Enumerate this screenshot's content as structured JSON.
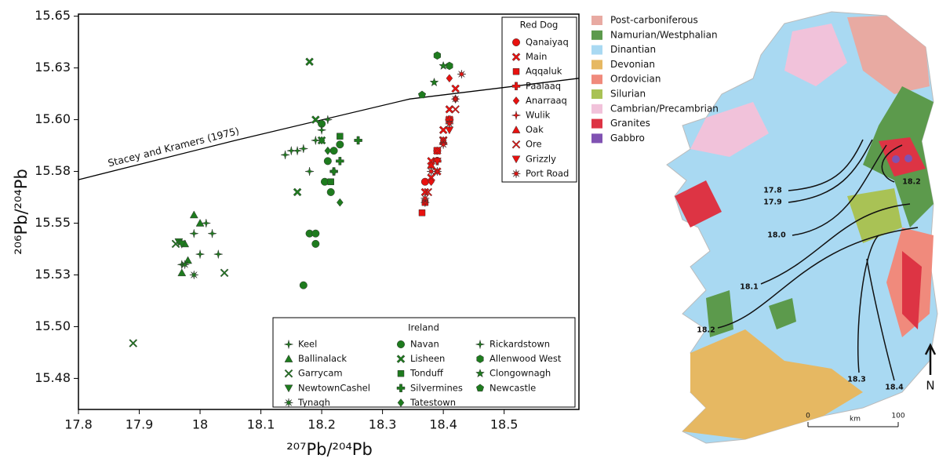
{
  "chart_data": {
    "type": "scatter",
    "x_label": "²⁰⁷Pb/²⁰⁴Pb",
    "y_label": "²⁰⁶Pb/²⁰⁴Pb",
    "xlim": [
      17.8,
      18.623
    ],
    "ylim": [
      15.46,
      15.651
    ],
    "xticks": [
      17.8,
      17.9,
      18.0,
      18.1,
      18.2,
      18.3,
      18.4,
      18.5
    ],
    "yticks": [
      {
        "value": 15.65,
        "label": "15.65"
      },
      {
        "value": 15.625,
        "label": "15.63"
      },
      {
        "value": 15.6,
        "label": "15.60"
      },
      {
        "value": 15.575,
        "label": "15.58"
      },
      {
        "value": 15.55,
        "label": "15.55"
      },
      {
        "value": 15.525,
        "label": "15.53"
      },
      {
        "value": 15.5,
        "label": "15.50"
      },
      {
        "value": 15.475,
        "label": "15.48"
      }
    ],
    "reference_line": {
      "name": "Stacey and Kramers (1975)",
      "x": [
        17.8,
        18.058,
        18.345,
        18.623
      ],
      "y": [
        15.571,
        15.59,
        15.61,
        15.62
      ]
    },
    "legends": [
      {
        "title": "Red Dog",
        "position": "upper right"
      },
      {
        "title": "Ireland",
        "position": "lower right"
      }
    ],
    "series": [
      {
        "name": "Qanaiyaq",
        "group": "Red Dog",
        "marker": "circle",
        "color": "#e8110f",
        "x": [
          18.37,
          18.39
        ],
        "y": [
          15.57,
          15.585
        ]
      },
      {
        "name": "Main",
        "group": "Red Dog",
        "marker": "x",
        "color": "#e8110f",
        "x": [
          18.37,
          18.38,
          18.39,
          18.4,
          18.41,
          18.38,
          18.4,
          18.42,
          18.39,
          18.41
        ],
        "y": [
          15.565,
          15.572,
          15.585,
          15.595,
          15.605,
          15.58,
          15.59,
          15.615,
          15.575,
          15.6
        ]
      },
      {
        "name": "Aqqaluk",
        "group": "Red Dog",
        "marker": "square",
        "color": "#e8110f",
        "x": [
          18.365,
          18.37
        ],
        "y": [
          15.555,
          15.56
        ]
      },
      {
        "name": "Paalaaq",
        "group": "Red Dog",
        "marker": "plus",
        "color": "#e8110f",
        "x": [
          18.39,
          18.41
        ],
        "y": [
          15.58,
          15.6
        ]
      },
      {
        "name": "Anarraaq",
        "group": "Red Dog",
        "marker": "diamond",
        "color": "#e8110f",
        "x": [
          18.38,
          18.4,
          18.42,
          18.41
        ],
        "y": [
          15.57,
          15.59,
          15.61,
          15.62
        ]
      },
      {
        "name": "Wulik",
        "group": "Red Dog",
        "marker": "star4",
        "color": "#e8110f",
        "x": [
          18.37,
          18.39
        ],
        "y": [
          15.56,
          15.575
        ]
      },
      {
        "name": "Oak",
        "group": "Red Dog",
        "marker": "triangle",
        "color": "#e8110f",
        "x": [
          18.38
        ],
        "y": [
          15.578
        ]
      },
      {
        "name": "Ore",
        "group": "Red Dog",
        "marker": "x-thin",
        "color": "#e8110f",
        "x": [
          18.375,
          18.4,
          18.42
        ],
        "y": [
          15.565,
          15.59,
          15.605
        ]
      },
      {
        "name": "Grizzly",
        "group": "Red Dog",
        "marker": "triangle-down",
        "color": "#e8110f",
        "x": [
          18.39,
          18.41
        ],
        "y": [
          15.58,
          15.595
        ]
      },
      {
        "name": "Port Road",
        "group": "Red Dog",
        "marker": "asterisk",
        "color": "#e8110f",
        "x": [
          18.37,
          18.38,
          18.4,
          18.42,
          18.43,
          18.41
        ],
        "y": [
          15.562,
          15.575,
          15.588,
          15.61,
          15.622,
          15.598
        ]
      },
      {
        "name": "Keel",
        "group": "Ireland",
        "marker": "star4",
        "color": "#1e7b1e",
        "x": [
          17.97,
          17.99,
          18.0,
          18.01,
          18.02,
          17.97,
          18.03
        ],
        "y": [
          15.54,
          15.545,
          15.535,
          15.55,
          15.545,
          15.53,
          15.535
        ]
      },
      {
        "name": "Ballinalack",
        "group": "Ireland",
        "marker": "triangle",
        "color": "#1e7b1e",
        "x": [
          17.97,
          17.98,
          17.99,
          18.0,
          17.975
        ],
        "y": [
          15.526,
          15.532,
          15.554,
          15.55,
          15.54
        ]
      },
      {
        "name": "Garrycam",
        "group": "Ireland",
        "marker": "x-thin",
        "color": "#1e7b1e",
        "x": [
          17.89,
          18.04,
          17.96
        ],
        "y": [
          15.492,
          15.526,
          15.54
        ]
      },
      {
        "name": "NewtownCashel",
        "group": "Ireland",
        "marker": "triangle-down",
        "color": "#1e7b1e",
        "x": [
          17.965,
          17.97
        ],
        "y": [
          15.541,
          15.54
        ]
      },
      {
        "name": "Tynagh",
        "group": "Ireland",
        "marker": "asterisk",
        "color": "#1e7b1e",
        "x": [
          17.975,
          17.99
        ],
        "y": [
          15.53,
          15.525
        ]
      },
      {
        "name": "Navan",
        "group": "Ireland",
        "marker": "circle",
        "color": "#1e7b1e",
        "x": [
          18.18,
          18.19,
          18.17,
          18.21,
          18.205,
          18.22,
          18.2,
          18.23,
          18.215,
          18.19
        ],
        "y": [
          15.545,
          15.545,
          15.52,
          15.58,
          15.57,
          15.585,
          15.598,
          15.588,
          15.565,
          15.54
        ]
      },
      {
        "name": "Lisheen",
        "group": "Ireland",
        "marker": "x",
        "color": "#1e7b1e",
        "x": [
          18.18,
          18.19,
          18.16,
          18.2
        ],
        "y": [
          15.628,
          15.6,
          15.565,
          15.59
        ]
      },
      {
        "name": "Tonduff",
        "group": "Ireland",
        "marker": "square",
        "color": "#1e7b1e",
        "x": [
          18.23,
          18.215
        ],
        "y": [
          15.592,
          15.57
        ]
      },
      {
        "name": "Silvermines",
        "group": "Ireland",
        "marker": "plus",
        "color": "#1e7b1e",
        "x": [
          18.26,
          18.22,
          18.23
        ],
        "y": [
          15.59,
          15.575,
          15.58
        ]
      },
      {
        "name": "Tatestown",
        "group": "Ireland",
        "marker": "diamond",
        "color": "#1e7b1e",
        "x": [
          18.23,
          18.2,
          18.21,
          18.22
        ],
        "y": [
          15.56,
          15.59,
          15.585,
          15.575
        ]
      },
      {
        "name": "Rickardstown",
        "group": "Ireland",
        "marker": "star4",
        "color": "#1e7b1e",
        "x": [
          18.14,
          18.15,
          18.16,
          18.17,
          18.19,
          18.2,
          18.21,
          18.18
        ],
        "y": [
          15.583,
          15.585,
          15.585,
          15.586,
          15.59,
          15.595,
          15.6,
          15.575
        ]
      },
      {
        "name": "Allenwood West",
        "group": "Ireland",
        "marker": "hexagon",
        "color": "#1e7b1e",
        "x": [
          18.39,
          18.41
        ],
        "y": [
          15.631,
          15.626
        ]
      },
      {
        "name": "Clongownagh",
        "group": "Ireland",
        "marker": "star",
        "color": "#1e7b1e",
        "x": [
          18.385,
          18.4
        ],
        "y": [
          15.618,
          15.626
        ]
      },
      {
        "name": "Newcastle",
        "group": "Ireland",
        "marker": "pentagon",
        "color": "#1e7b1e",
        "x": [
          18.365
        ],
        "y": [
          15.612
        ]
      }
    ]
  },
  "map": {
    "legend": [
      {
        "label": "Post-carboniferous",
        "color": "#e8aaa2"
      },
      {
        "label": "Namurian/Westphalian",
        "color": "#5c9a4c"
      },
      {
        "label": "Dinantian",
        "color": "#a9d9f2"
      },
      {
        "label": "Devonian",
        "color": "#e6b862"
      },
      {
        "label": "Ordovician",
        "color": "#f08a7c"
      },
      {
        "label": "Silurian",
        "color": "#a9c255"
      },
      {
        "label": "Cambrian/Precambrian",
        "color": "#f1c2da"
      },
      {
        "label": "Granites",
        "color": "#dd3444"
      },
      {
        "label": "Gabbro",
        "color": "#8052b2"
      }
    ],
    "contours": [
      "17.8",
      "17.9",
      "18.0",
      "18.1",
      "18.2",
      "18.2",
      "18.3",
      "18.4"
    ],
    "scale": [
      "0",
      "km",
      "100"
    ],
    "north": "N"
  }
}
